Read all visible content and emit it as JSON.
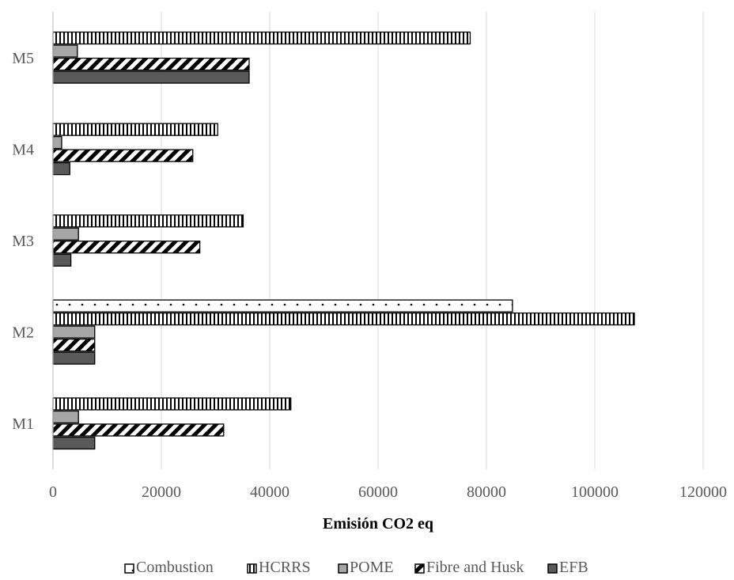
{
  "chart_data": {
    "type": "bar",
    "orientation": "horizontal",
    "categories": [
      "M1",
      "M2",
      "M3",
      "M4",
      "M5"
    ],
    "series": [
      {
        "name": "Combustion",
        "values": [
          null,
          84800,
          null,
          null,
          null
        ],
        "pattern": "dots"
      },
      {
        "name": "HCRRS",
        "values": [
          43900,
          107300,
          35100,
          30400,
          77000
        ],
        "pattern": "vertical"
      },
      {
        "name": "POME",
        "values": [
          4700,
          7700,
          4700,
          1600,
          4500
        ],
        "pattern": "solid-gray",
        "color": "#a6a6a6"
      },
      {
        "name": "Fibre and Husk",
        "values": [
          31500,
          7700,
          27100,
          25800,
          36200
        ],
        "pattern": "diagonal"
      },
      {
        "name": "EFB",
        "values": [
          7700,
          7700,
          3300,
          3100,
          36200
        ],
        "pattern": "solid-dark",
        "color": "#595959"
      }
    ],
    "xlabel": "Emisión CO2 eq",
    "ylabel": "",
    "xlim": [
      0,
      120000
    ],
    "xticks": [
      "0",
      "20000",
      "40000",
      "60000",
      "80000",
      "100000",
      "120000"
    ],
    "grid": "vertical",
    "legend": "bottom"
  }
}
